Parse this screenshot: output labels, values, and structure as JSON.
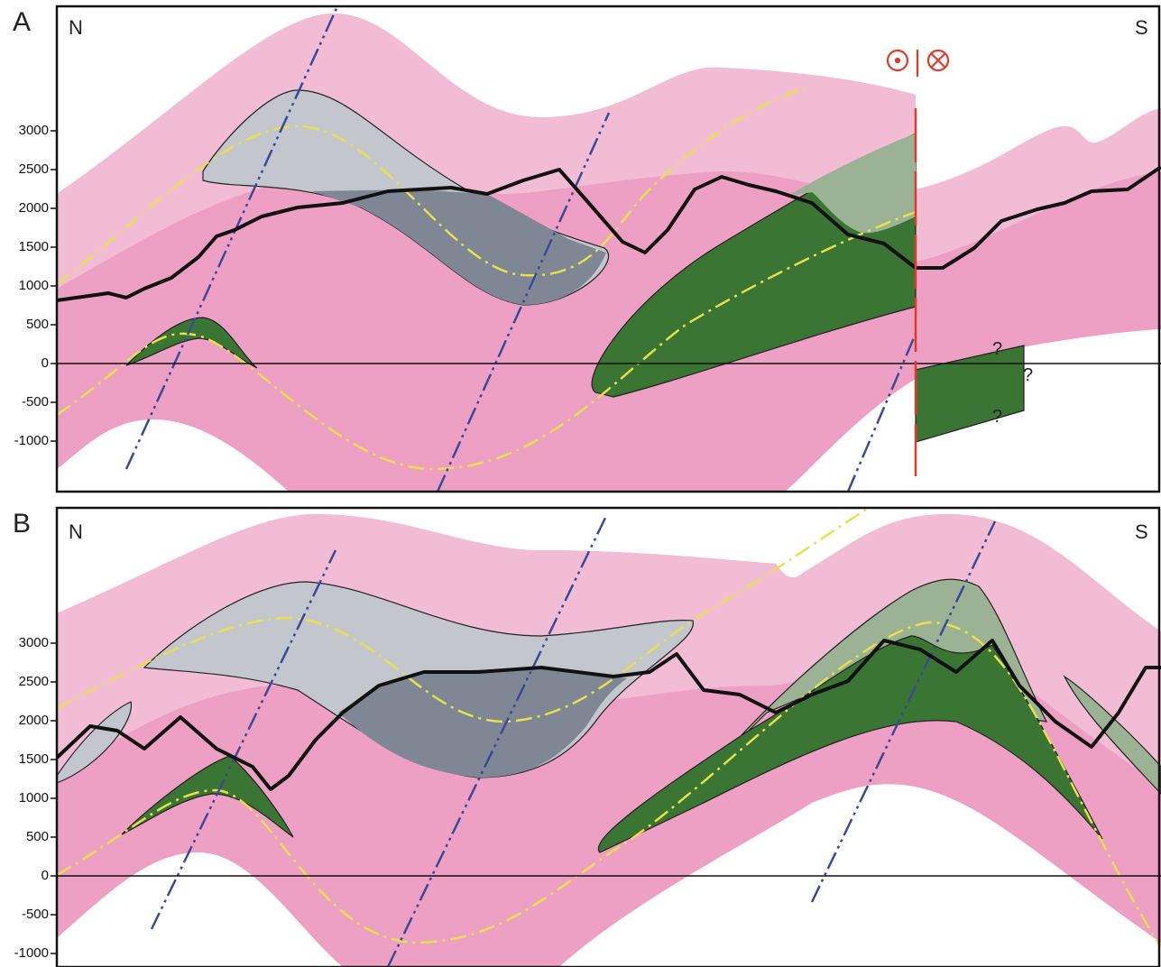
{
  "panels": [
    {
      "label": "A",
      "left": "N",
      "right": "S",
      "ticks": [
        3000,
        2500,
        2000,
        1500,
        1000,
        500,
        0,
        -500,
        -1000
      ],
      "queries": [
        "?",
        "?",
        "?"
      ]
    },
    {
      "label": "B",
      "left": "N",
      "right": "S",
      "ticks": [
        3000,
        2500,
        2000,
        1500,
        1000,
        500,
        0,
        -500,
        -1000
      ]
    }
  ]
}
